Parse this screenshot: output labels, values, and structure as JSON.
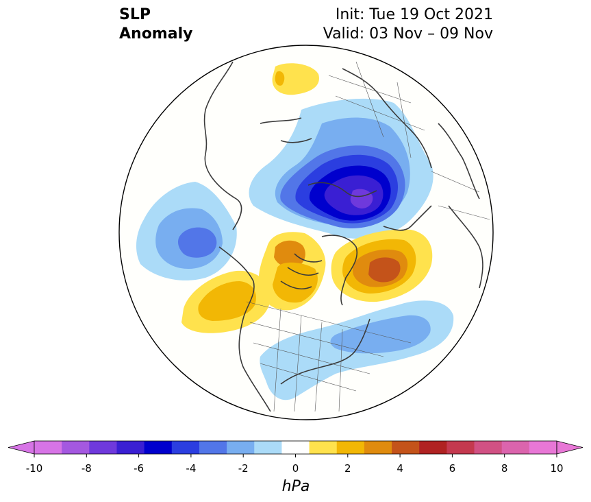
{
  "title": {
    "left_line1": "SLP",
    "left_line2": "Anomaly",
    "right_line1": "Init: Tue 19 Oct 2021",
    "right_line2": "Valid: 03 Nov – 09 Nov"
  },
  "colorbar": {
    "unit_label": "hPa",
    "tick_labels": [
      "-10",
      "-8",
      "-6",
      "-4",
      "-2",
      "0",
      "2",
      "4",
      "6",
      "8",
      "10"
    ],
    "levels": [
      -10,
      -9,
      -8,
      -7,
      -6,
      -5,
      -4,
      -3,
      -2,
      -1,
      1,
      2,
      3,
      4,
      5,
      6,
      7,
      8,
      9,
      10
    ],
    "colors": [
      "#d774e6",
      "#a458e0",
      "#6f39dc",
      "#3a1fd3",
      "#0000cd",
      "#2b3ee0",
      "#5276e8",
      "#78aef0",
      "#abdbf8",
      "#ffffff",
      "#ffe24d",
      "#f2b705",
      "#e08b0e",
      "#c4531a",
      "#b02222",
      "#c4394f",
      "#d15184",
      "#db64ad",
      "#e877d6"
    ],
    "extend_low_color": "#d774e6",
    "extend_high_color": "#e877d6"
  },
  "map": {
    "projection": "north-polar-stereographic",
    "anomaly_centers": [
      {
        "name": "arctic-low",
        "min_hpa": -7
      },
      {
        "name": "pacific-low",
        "min_hpa": -4
      },
      {
        "name": "greenland-high",
        "max_hpa": 4
      },
      {
        "name": "hudson-high",
        "max_hpa": 3
      },
      {
        "name": "gulf-of-alaska-high",
        "max_hpa": 2
      },
      {
        "name": "siberia-high",
        "max_hpa": 2
      },
      {
        "name": "atlantic-low",
        "min_hpa": -3
      },
      {
        "name": "eastern-us-low",
        "min_hpa": -2
      }
    ]
  }
}
